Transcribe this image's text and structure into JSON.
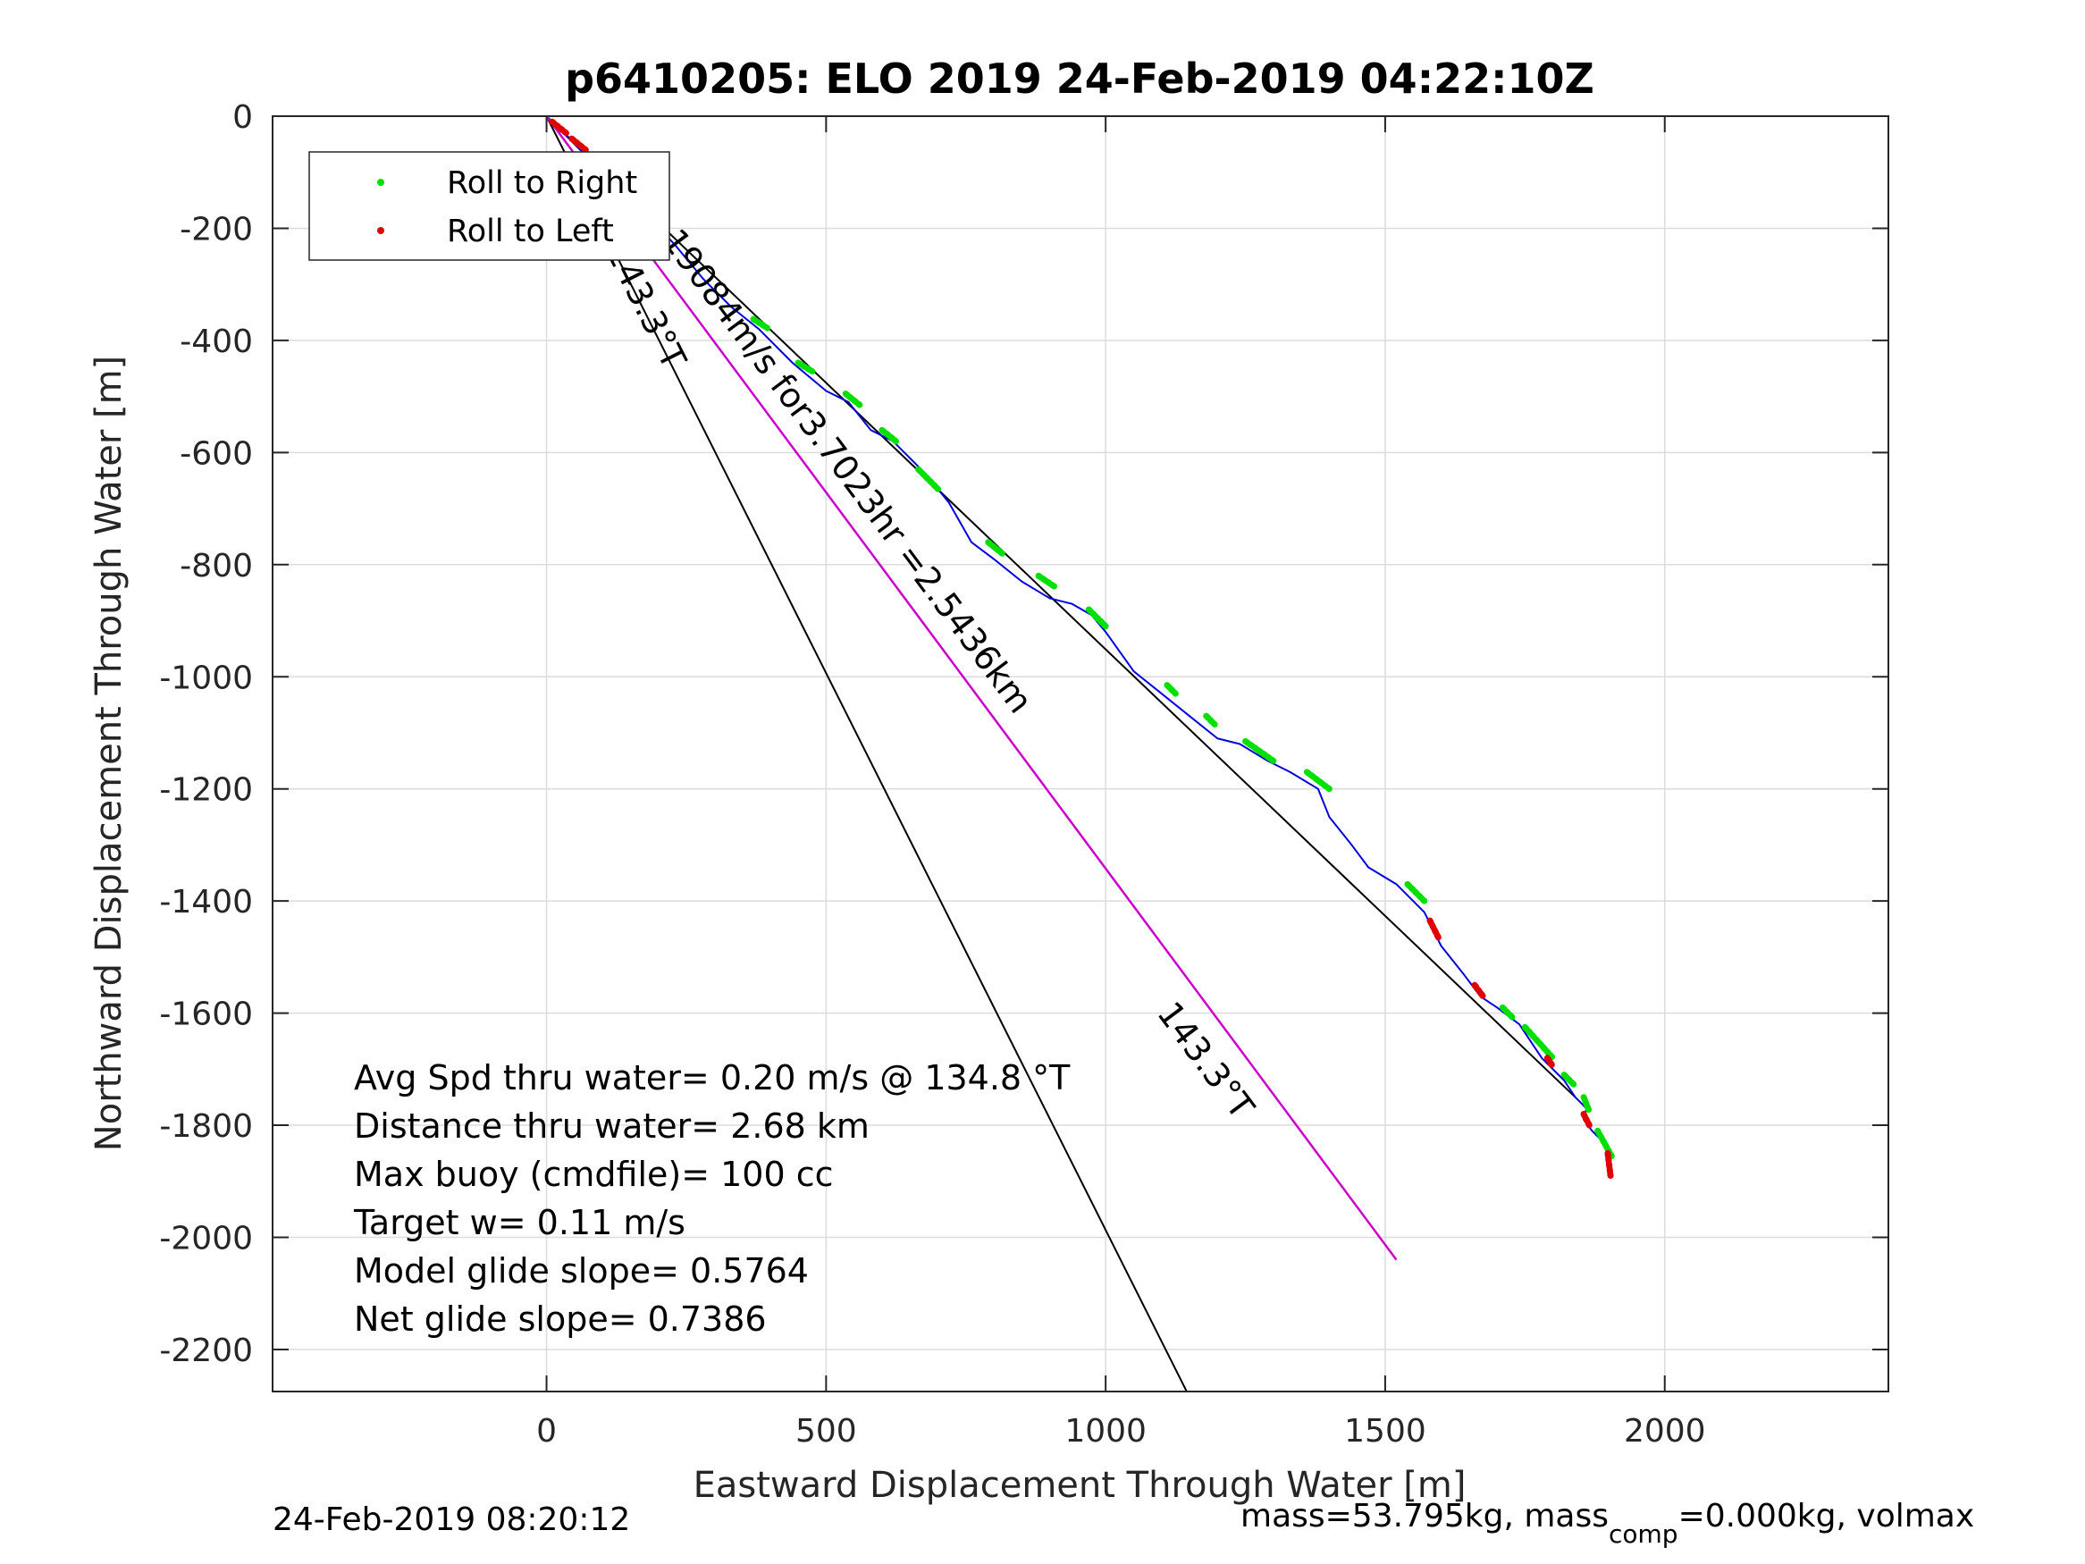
{
  "chart_data": {
    "type": "line",
    "title": "p6410205: ELO 2019 24-Feb-2019 04:22:10Z",
    "xlabel": "Eastward Displacement Through Water [m]",
    "ylabel": "Northward Displacement Through Water [m]",
    "xlim": [
      -490,
      2400
    ],
    "ylim": [
      -2275,
      0
    ],
    "xticks": [
      0,
      500,
      1000,
      1500,
      2000
    ],
    "yticks": [
      0,
      -200,
      -400,
      -600,
      -800,
      -1000,
      -1200,
      -1400,
      -1600,
      -1800,
      -2000,
      -2200
    ],
    "grid": true,
    "legend": {
      "placement": "top-left",
      "entries": [
        {
          "label": "Roll to Right",
          "color": "#00e000"
        },
        {
          "label": "Roll to Left",
          "color": "#e00000"
        }
      ]
    },
    "series": [
      {
        "name": "track",
        "color": "#0000dd",
        "x": [
          0,
          30,
          60,
          100,
          140,
          180,
          230,
          280,
          330,
          380,
          440,
          500,
          540,
          580,
          620,
          680,
          720,
          760,
          800,
          850,
          900,
          940,
          975,
          1000,
          1050,
          1100,
          1150,
          1200,
          1240,
          1290,
          1330,
          1380,
          1400,
          1440,
          1470,
          1520,
          1570,
          1600,
          1640,
          1670,
          1700,
          1740,
          1780,
          1820,
          1840,
          1860,
          1855,
          1870,
          1890,
          1900,
          1905
        ],
        "y": [
          0,
          -30,
          -60,
          -90,
          -130,
          -175,
          -230,
          -290,
          -340,
          -380,
          -440,
          -490,
          -510,
          -560,
          -580,
          -640,
          -690,
          -760,
          -790,
          -830,
          -860,
          -870,
          -890,
          -920,
          -990,
          -1030,
          -1070,
          -1110,
          -1120,
          -1150,
          -1170,
          -1200,
          -1250,
          -1300,
          -1340,
          -1370,
          -1420,
          -1480,
          -1530,
          -1570,
          -1590,
          -1620,
          -1680,
          -1720,
          -1750,
          -1770,
          -1790,
          -1810,
          -1830,
          -1860,
          -1890
        ]
      },
      {
        "name": "glide-direction",
        "color": "#cc00cc",
        "x": [
          0,
          1520
        ],
        "y": [
          0,
          -2040
        ]
      }
    ],
    "reference_lines": [
      {
        "x": [
          0,
          1840
        ],
        "y": [
          0,
          -1750
        ]
      },
      {
        "x": [
          0,
          1145
        ],
        "y": [
          0,
          -2275
        ]
      }
    ],
    "roll_right_segments": [
      [
        [
          370,
          -362
        ],
        [
          395,
          -378
        ]
      ],
      [
        [
          450,
          -440
        ],
        [
          475,
          -455
        ]
      ],
      [
        [
          535,
          -495
        ],
        [
          560,
          -515
        ]
      ],
      [
        [
          600,
          -560
        ],
        [
          625,
          -580
        ]
      ],
      [
        [
          665,
          -630
        ],
        [
          700,
          -665
        ]
      ],
      [
        [
          790,
          -760
        ],
        [
          815,
          -780
        ]
      ],
      [
        [
          880,
          -820
        ],
        [
          910,
          -840
        ]
      ],
      [
        [
          970,
          -880
        ],
        [
          1000,
          -910
        ]
      ],
      [
        [
          1110,
          -1015
        ],
        [
          1125,
          -1030
        ]
      ],
      [
        [
          1180,
          -1070
        ],
        [
          1195,
          -1085
        ]
      ],
      [
        [
          1250,
          -1115
        ],
        [
          1300,
          -1150
        ]
      ],
      [
        [
          1360,
          -1170
        ],
        [
          1400,
          -1200
        ]
      ],
      [
        [
          1540,
          -1370
        ],
        [
          1570,
          -1400
        ]
      ],
      [
        [
          1710,
          -1590
        ],
        [
          1730,
          -1610
        ]
      ],
      [
        [
          1750,
          -1625
        ],
        [
          1800,
          -1680
        ]
      ],
      [
        [
          1820,
          -1710
        ],
        [
          1840,
          -1730
        ]
      ],
      [
        [
          1855,
          -1750
        ],
        [
          1865,
          -1775
        ]
      ],
      [
        [
          1880,
          -1810
        ],
        [
          1905,
          -1855
        ]
      ]
    ],
    "roll_left_segments": [
      [
        [
          10,
          -10
        ],
        [
          35,
          -30
        ]
      ],
      [
        [
          45,
          -40
        ],
        [
          70,
          -60
        ]
      ],
      [
        [
          90,
          -75
        ],
        [
          110,
          -95
        ]
      ],
      [
        [
          1580,
          -1435
        ],
        [
          1595,
          -1465
        ]
      ],
      [
        [
          1660,
          -1550
        ],
        [
          1675,
          -1570
        ]
      ],
      [
        [
          1790,
          -1680
        ],
        [
          1800,
          -1695
        ]
      ],
      [
        [
          1855,
          -1780
        ],
        [
          1865,
          -1800
        ]
      ],
      [
        [
          1898,
          -1850
        ],
        [
          1903,
          -1890
        ]
      ]
    ],
    "annotations": [
      {
        "text": "0.19084m/s for3.7023hr =2.5436km",
        "x": 170,
        "y": -175,
        "angle": 53.3
      },
      {
        "text": "143.3°T",
        "x": 105,
        "y": -240,
        "angle": 63.3
      },
      {
        "text": "143.3°T",
        "x": 1090,
        "y": -1600,
        "angle": 53.3
      }
    ]
  },
  "info_lines": [
    "Avg Spd thru water=  0.20 m/s @ 134.8 °T",
    "Distance thru water=  2.68 km",
    "Max buoy (cmdfile)= 100 cc",
    "Target w= 0.11 m/s",
    "Model glide slope= 0.5764",
    "Net glide slope= 0.7386"
  ],
  "footer_left": "24-Feb-2019 08:20:12",
  "footer_right": {
    "pre": "mass=53.795kg, mass",
    "sub": "comp",
    "post": "=0.000kg, volmax"
  }
}
